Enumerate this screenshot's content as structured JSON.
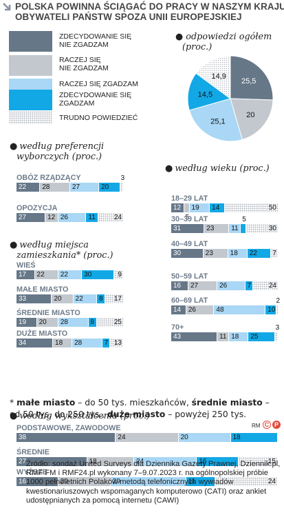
{
  "title": {
    "line1": "POLSKA POWINNA ŚCIĄGAĆ DO PRACY W NASZYM KRAJU",
    "line2": "OBYWATELI PAŃSTW SPOZA UNII EUROPEJSKIEJ"
  },
  "legend": [
    {
      "key": "zdecydowanie_nie",
      "line1": "ZDECYDOWANIE SIĘ",
      "line2": "NIE ZGADZAM",
      "color": "#667788"
    },
    {
      "key": "raczej_nie",
      "line1": "RACZEJ SIĘ",
      "line2": "NIE ZGADZAM",
      "color": "#c3c8ce"
    },
    {
      "key": "raczej_tak",
      "line1": "RACZEJ SIĘ ZGADZAM",
      "line2": "",
      "color": "#a9d7f5"
    },
    {
      "key": "zdecydowanie_tak",
      "line1": "ZDECYDOWANIE SIĘ",
      "line2": "ZGADZAM",
      "color": "#12a8e6"
    },
    {
      "key": "trudno",
      "line1": "TRUDNO POWIEDZIEĆ",
      "line2": "",
      "color": "#dotted"
    }
  ],
  "overall": {
    "title_line1": "odpowiedzi ogółem",
    "title_line2": "(proc.)"
  },
  "sections": {
    "party": {
      "line1": "według preferencji",
      "line2": "wyborczych (proc.)"
    },
    "place": {
      "line1": "według miejsca",
      "line2": "zamieszkania* (proc.)"
    },
    "age": {
      "line1": "według wieku (proc.)"
    },
    "education": {
      "line1": "według wykształcenia (proc.)"
    }
  },
  "footnote": {
    "star": "* ",
    "b1": "małe miasto",
    "t1": " – do 50 tys. mieszkańców, ",
    "b2": "średnie miasto",
    "t2": " – od 50 tys. do 250 tys., ",
    "b3": "duże miasto",
    "t3": " – powyżej 250 tys."
  },
  "rm_label": "RM",
  "source": "Źródło: sondaż United Surveys dla Dziennika Gazety Prawnej, Dziennik.pl, RMF FM i RMF24.pl wykonany 7–9.07.2023 r. na ogólnopolskiej próbie 1000 pełnoletnich Polaków metodą telefonicznych wywiadów kwestionariuszowych wspomaganych komputerowo (CATI) oraz ankiet udostępnianych za pomocą internetu (CAWI)",
  "chart_data": [
    {
      "type": "pie",
      "title": "odpowiedzi ogółem (proc.)",
      "categories": [
        "ZDECYDOWANIE SIĘ NIE ZGADZAM",
        "RACZEJ SIĘ NIE ZGADZAM",
        "RACZEJ SIĘ ZGADZAM",
        "ZDECYDOWANIE SIĘ ZGADZAM",
        "TRUDNO POWIEDZIEĆ"
      ],
      "values": [
        25.5,
        20,
        25.1,
        14.5,
        14.9
      ],
      "labels": [
        "25,5",
        "20",
        "25,1",
        "14,5",
        "14,9"
      ]
    },
    {
      "type": "bar",
      "stacked": true,
      "title": "według preferencji wyborczych (proc.)",
      "categories": [
        "OBÓZ RZĄDZĄCY",
        "OPOZYCJA"
      ],
      "series": [
        {
          "name": "ZDECYDOWANIE SIĘ NIE ZGADZAM",
          "values": [
            22,
            27
          ]
        },
        {
          "name": "RACZEJ SIĘ NIE ZGADZAM",
          "values": [
            28,
            12
          ]
        },
        {
          "name": "RACZEJ SIĘ ZGADZAM",
          "values": [
            27,
            26
          ]
        },
        {
          "name": "ZDECYDOWANIE SIĘ ZGADZAM",
          "values": [
            20,
            11
          ]
        },
        {
          "name": "TRUDNO POWIEDZIEĆ",
          "values": [
            3,
            24
          ]
        }
      ]
    },
    {
      "type": "bar",
      "stacked": true,
      "title": "według miejsca zamieszkania* (proc.)",
      "categories": [
        "WIEŚ",
        "MAŁE MIASTO",
        "ŚREDNIE MIASTO",
        "DUŻE MIASTO"
      ],
      "series": [
        {
          "name": "ZDECYDOWANIE SIĘ NIE ZGADZAM",
          "values": [
            17,
            33,
            19,
            34
          ]
        },
        {
          "name": "RACZEJ SIĘ NIE ZGADZAM",
          "values": [
            22,
            20,
            20,
            18
          ]
        },
        {
          "name": "RACZEJ SIĘ ZGADZAM",
          "values": [
            22,
            22,
            28,
            28
          ]
        },
        {
          "name": "ZDECYDOWANIE SIĘ ZGADZAM",
          "values": [
            30,
            8,
            8,
            7
          ]
        },
        {
          "name": "TRUDNO POWIEDZIEĆ",
          "values": [
            9,
            17,
            25,
            13
          ]
        }
      ]
    },
    {
      "type": "bar",
      "stacked": true,
      "title": "według wieku (proc.)",
      "categories": [
        "18–29 LAT",
        "30–39 LAT",
        "40–49 LAT",
        "50–59 LAT",
        "60–69 LAT",
        "70+"
      ],
      "series": [
        {
          "name": "ZDECYDOWANIE SIĘ NIE ZGADZAM",
          "values": [
            12,
            31,
            30,
            16,
            14,
            43
          ]
        },
        {
          "name": "RACZEJ SIĘ NIE ZGADZAM",
          "values": [
            5,
            23,
            23,
            27,
            26,
            11
          ]
        },
        {
          "name": "RACZEJ SIĘ ZGADZAM",
          "values": [
            19,
            11,
            18,
            26,
            48,
            18
          ]
        },
        {
          "name": "ZDECYDOWANIE SIĘ ZGADZAM",
          "values": [
            14,
            5,
            22,
            7,
            10,
            25
          ]
        },
        {
          "name": "TRUDNO POWIEDZIEĆ",
          "values": [
            50,
            30,
            7,
            24,
            2,
            3
          ]
        }
      ]
    },
    {
      "type": "bar",
      "stacked": true,
      "title": "według wykształcenia (proc.)",
      "categories": [
        "PODSTAWOWE, ZAWODOWE",
        "ŚREDNIE",
        "WYŻSZE"
      ],
      "series": [
        {
          "name": "ZDECYDOWANIE SIĘ NIE ZGADZAM",
          "values": [
            38,
            27,
            16
          ]
        },
        {
          "name": "RACZEJ SIĘ NIE ZGADZAM",
          "values": [
            24,
            18,
            20
          ]
        },
        {
          "name": "RACZEJ SIĘ ZGADZAM",
          "values": [
            20,
            24,
            29
          ]
        },
        {
          "name": "ZDECYDOWANIE SIĘ ZGADZAM",
          "values": [
            18,
            16,
            11
          ]
        },
        {
          "name": "TRUDNO POWIEDZIEĆ",
          "values": [
            0,
            15,
            24
          ]
        }
      ]
    }
  ]
}
